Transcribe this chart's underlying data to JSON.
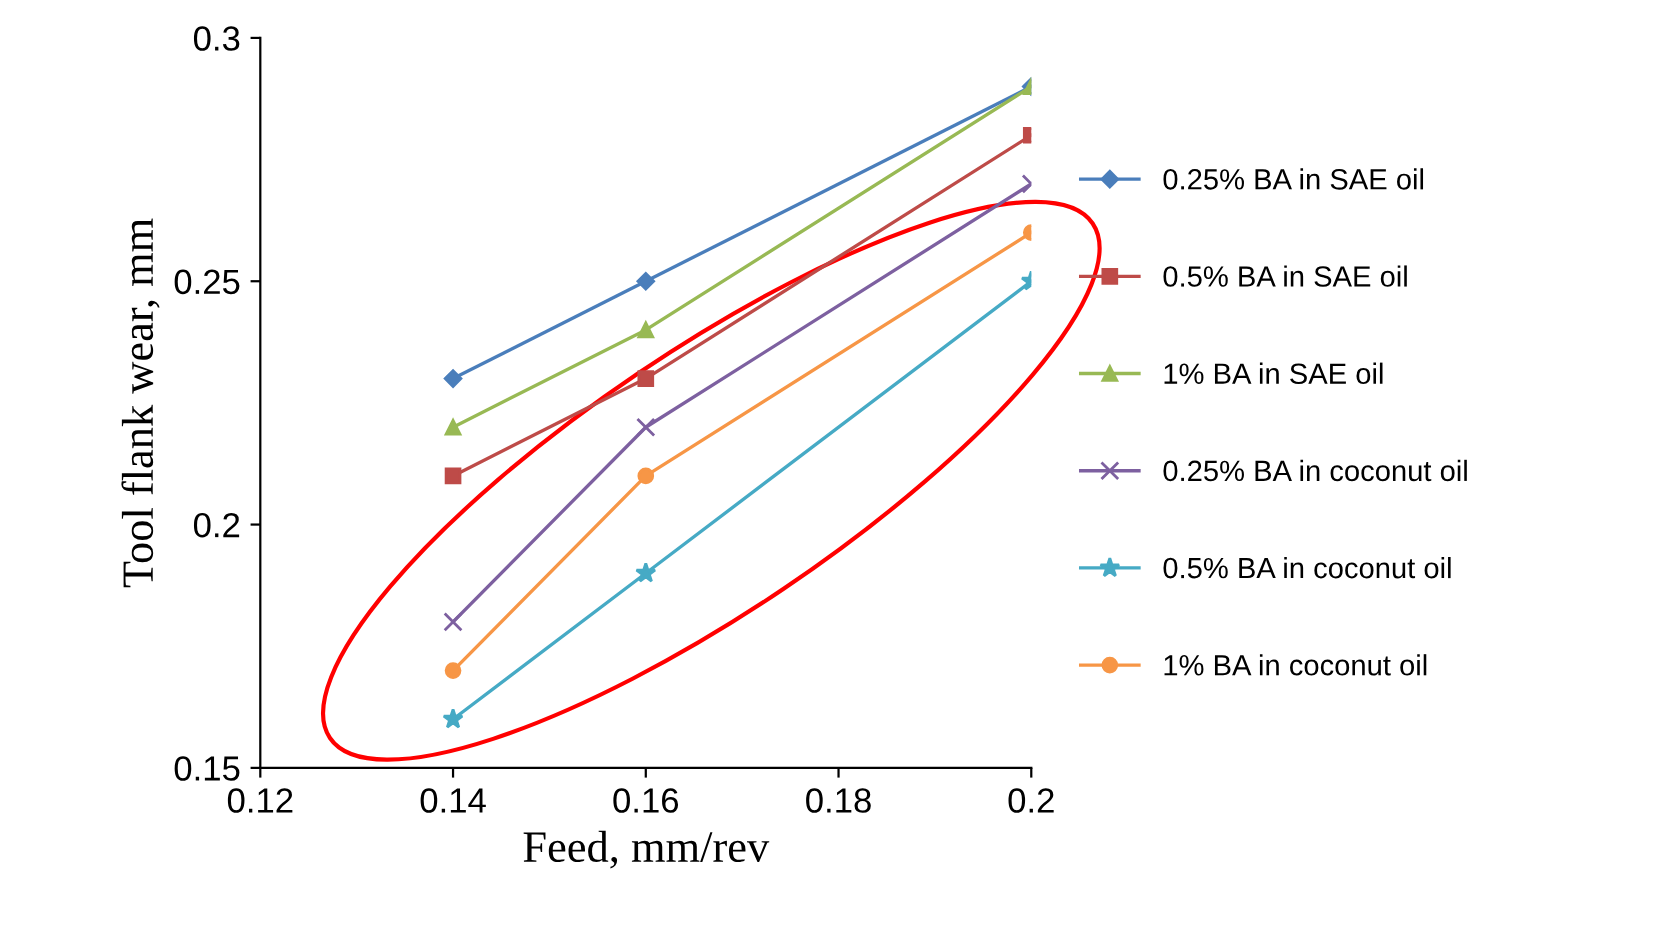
{
  "chart_data": {
    "type": "line",
    "xlabel": "Feed, mm/rev",
    "ylabel": "Tool flank wear, mm",
    "x": [
      0.14,
      0.16,
      0.2
    ],
    "xlim": [
      0.12,
      0.2
    ],
    "xticks": [
      0.12,
      0.14,
      0.16,
      0.18,
      0.2
    ],
    "ylim": [
      0.15,
      0.3
    ],
    "yticks": [
      0.15,
      0.2,
      0.25,
      0.3
    ],
    "grid": false,
    "legend": "right",
    "series": [
      {
        "name": "0.25% BA in SAE oil",
        "color": "#4a7ebb",
        "marker": "diamond",
        "values": [
          0.23,
          0.25,
          0.29
        ]
      },
      {
        "name": "0.5% BA in SAE oil",
        "color": "#be4b48",
        "marker": "square",
        "values": [
          0.21,
          0.23,
          0.28
        ]
      },
      {
        "name": "1% BA in SAE oil",
        "color": "#98b954",
        "marker": "triangle",
        "values": [
          0.22,
          0.24,
          0.29
        ]
      },
      {
        "name": "0.25% BA in coconut oil",
        "color": "#7d60a0",
        "marker": "cross",
        "values": [
          0.18,
          0.22,
          0.27
        ]
      },
      {
        "name": "0.5% BA in coconut oil",
        "color": "#46aac5",
        "marker": "star",
        "values": [
          0.16,
          0.19,
          0.25
        ]
      },
      {
        "name": "1% BA in coconut oil",
        "color": "#f79646",
        "marker": "circle",
        "values": [
          0.17,
          0.21,
          0.26
        ]
      }
    ]
  }
}
